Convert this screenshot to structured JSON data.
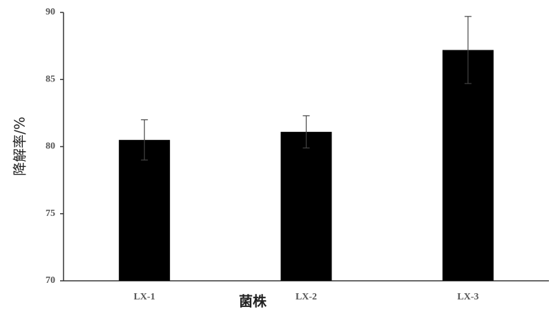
{
  "chart_data": {
    "type": "bar",
    "x_label": "菌株",
    "y_label": "降解率/%",
    "categories": [
      "LX-1",
      "LX-2",
      "LX-3"
    ],
    "values": [
      80.5,
      81.1,
      87.2
    ],
    "errors": [
      1.5,
      1.2,
      2.5
    ],
    "color": "#000000",
    "ylim": [
      70,
      90
    ],
    "yticks": [
      70,
      75,
      80,
      85,
      90
    ],
    "grid": false
  }
}
